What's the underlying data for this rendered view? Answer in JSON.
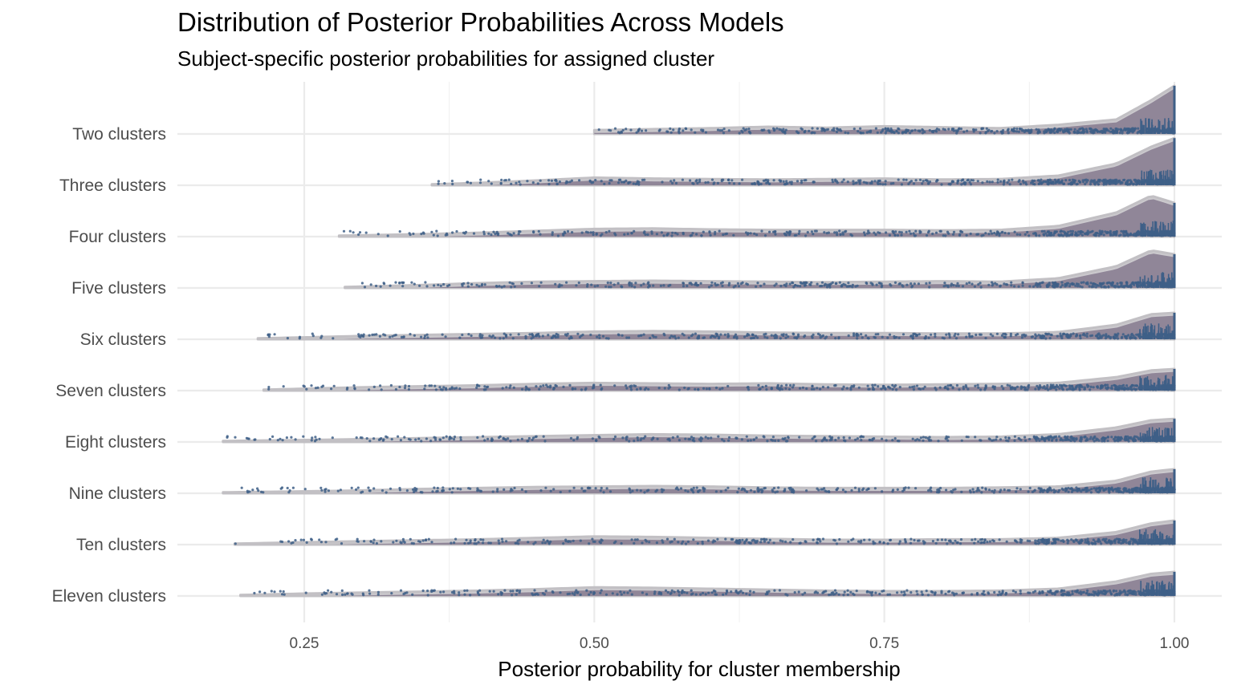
{
  "chart_data": {
    "type": "ridgeline",
    "title": "Distribution of Posterior Probabilities Across Models",
    "subtitle": "Subject-specific posterior probabilities for assigned cluster",
    "xlabel": "Posterior probability for cluster membership",
    "ylabel": "",
    "xlim": [
      0.14,
      1.04
    ],
    "x_ticks": [
      0.25,
      0.5,
      0.75,
      1.0
    ],
    "x_tick_labels": [
      "0.25",
      "0.50",
      "0.75",
      "1.00"
    ],
    "x_minor_ticks": [
      0.375,
      0.625,
      0.875
    ],
    "grid": true,
    "legend": "none",
    "colors": {
      "density_fill": "#8a7e92",
      "density_outline": "#c2c0c4",
      "points": "#3e5f87",
      "grid": "#ebebeb"
    },
    "categories": [
      "Two clusters",
      "Three clusters",
      "Four clusters",
      "Five clusters",
      "Six clusters",
      "Seven clusters",
      "Eight clusters",
      "Nine clusters",
      "Ten clusters",
      "Eleven clusters"
    ],
    "series": [
      {
        "name": "Two clusters",
        "min": 0.5,
        "max": 1.0,
        "density": [
          [
            0.5,
            0.08
          ],
          [
            0.55,
            0.1
          ],
          [
            0.6,
            0.12
          ],
          [
            0.65,
            0.15
          ],
          [
            0.7,
            0.13
          ],
          [
            0.75,
            0.16
          ],
          [
            0.8,
            0.14
          ],
          [
            0.85,
            0.12
          ],
          [
            0.9,
            0.19
          ],
          [
            0.95,
            0.3
          ],
          [
            0.98,
            0.7
          ],
          [
            1.0,
            1.0
          ]
        ]
      },
      {
        "name": "Three clusters",
        "min": 0.36,
        "max": 1.0,
        "density": [
          [
            0.36,
            0.02
          ],
          [
            0.4,
            0.05
          ],
          [
            0.45,
            0.1
          ],
          [
            0.5,
            0.16
          ],
          [
            0.55,
            0.14
          ],
          [
            0.6,
            0.13
          ],
          [
            0.65,
            0.12
          ],
          [
            0.7,
            0.13
          ],
          [
            0.75,
            0.14
          ],
          [
            0.8,
            0.12
          ],
          [
            0.85,
            0.13
          ],
          [
            0.9,
            0.2
          ],
          [
            0.95,
            0.45
          ],
          [
            0.98,
            0.8
          ],
          [
            1.0,
            0.98
          ]
        ]
      },
      {
        "name": "Four clusters",
        "min": 0.28,
        "max": 1.0,
        "density": [
          [
            0.28,
            0.02
          ],
          [
            0.35,
            0.05
          ],
          [
            0.4,
            0.08
          ],
          [
            0.45,
            0.12
          ],
          [
            0.5,
            0.16
          ],
          [
            0.55,
            0.17
          ],
          [
            0.6,
            0.15
          ],
          [
            0.65,
            0.14
          ],
          [
            0.7,
            0.14
          ],
          [
            0.75,
            0.14
          ],
          [
            0.8,
            0.13
          ],
          [
            0.85,
            0.14
          ],
          [
            0.9,
            0.22
          ],
          [
            0.95,
            0.5
          ],
          [
            0.98,
            0.85
          ],
          [
            1.0,
            0.7
          ]
        ]
      },
      {
        "name": "Five clusters",
        "min": 0.285,
        "max": 1.0,
        "density": [
          [
            0.285,
            0.02
          ],
          [
            0.35,
            0.06
          ],
          [
            0.4,
            0.1
          ],
          [
            0.45,
            0.13
          ],
          [
            0.5,
            0.14
          ],
          [
            0.55,
            0.15
          ],
          [
            0.6,
            0.14
          ],
          [
            0.65,
            0.13
          ],
          [
            0.7,
            0.12
          ],
          [
            0.75,
            0.13
          ],
          [
            0.8,
            0.14
          ],
          [
            0.85,
            0.13
          ],
          [
            0.9,
            0.2
          ],
          [
            0.95,
            0.45
          ],
          [
            0.98,
            0.78
          ],
          [
            1.0,
            0.7
          ]
        ]
      },
      {
        "name": "Six clusters",
        "min": 0.21,
        "max": 1.0,
        "density": [
          [
            0.21,
            0.02
          ],
          [
            0.25,
            0.04
          ],
          [
            0.3,
            0.07
          ],
          [
            0.35,
            0.09
          ],
          [
            0.4,
            0.11
          ],
          [
            0.45,
            0.13
          ],
          [
            0.5,
            0.16
          ],
          [
            0.55,
            0.17
          ],
          [
            0.6,
            0.16
          ],
          [
            0.65,
            0.14
          ],
          [
            0.7,
            0.13
          ],
          [
            0.75,
            0.13
          ],
          [
            0.8,
            0.12
          ],
          [
            0.85,
            0.12
          ],
          [
            0.9,
            0.15
          ],
          [
            0.95,
            0.3
          ],
          [
            0.98,
            0.52
          ],
          [
            1.0,
            0.55
          ]
        ]
      },
      {
        "name": "Seven clusters",
        "min": 0.215,
        "max": 1.0,
        "density": [
          [
            0.215,
            0.02
          ],
          [
            0.25,
            0.04
          ],
          [
            0.3,
            0.07
          ],
          [
            0.35,
            0.09
          ],
          [
            0.4,
            0.11
          ],
          [
            0.45,
            0.14
          ],
          [
            0.5,
            0.16
          ],
          [
            0.55,
            0.15
          ],
          [
            0.6,
            0.14
          ],
          [
            0.65,
            0.15
          ],
          [
            0.7,
            0.13
          ],
          [
            0.75,
            0.12
          ],
          [
            0.8,
            0.13
          ],
          [
            0.85,
            0.14
          ],
          [
            0.9,
            0.16
          ],
          [
            0.95,
            0.28
          ],
          [
            0.98,
            0.42
          ],
          [
            1.0,
            0.45
          ]
        ]
      },
      {
        "name": "Eight clusters",
        "min": 0.18,
        "max": 1.0,
        "density": [
          [
            0.18,
            0.02
          ],
          [
            0.25,
            0.04
          ],
          [
            0.3,
            0.06
          ],
          [
            0.35,
            0.08
          ],
          [
            0.4,
            0.1
          ],
          [
            0.45,
            0.12
          ],
          [
            0.5,
            0.14
          ],
          [
            0.55,
            0.16
          ],
          [
            0.6,
            0.15
          ],
          [
            0.65,
            0.13
          ],
          [
            0.7,
            0.12
          ],
          [
            0.75,
            0.11
          ],
          [
            0.8,
            0.1
          ],
          [
            0.85,
            0.11
          ],
          [
            0.9,
            0.16
          ],
          [
            0.95,
            0.3
          ],
          [
            0.98,
            0.45
          ],
          [
            1.0,
            0.48
          ]
        ]
      },
      {
        "name": "Nine clusters",
        "min": 0.18,
        "max": 1.0,
        "density": [
          [
            0.18,
            0.02
          ],
          [
            0.25,
            0.04
          ],
          [
            0.3,
            0.06
          ],
          [
            0.35,
            0.09
          ],
          [
            0.4,
            0.11
          ],
          [
            0.45,
            0.13
          ],
          [
            0.5,
            0.14
          ],
          [
            0.55,
            0.15
          ],
          [
            0.6,
            0.14
          ],
          [
            0.65,
            0.12
          ],
          [
            0.7,
            0.11
          ],
          [
            0.75,
            0.11
          ],
          [
            0.8,
            0.11
          ],
          [
            0.85,
            0.12
          ],
          [
            0.9,
            0.14
          ],
          [
            0.95,
            0.26
          ],
          [
            0.98,
            0.45
          ],
          [
            1.0,
            0.5
          ]
        ]
      },
      {
        "name": "Ten clusters",
        "min": 0.19,
        "max": 1.0,
        "density": [
          [
            0.19,
            0.02
          ],
          [
            0.25,
            0.05
          ],
          [
            0.3,
            0.07
          ],
          [
            0.35,
            0.09
          ],
          [
            0.4,
            0.11
          ],
          [
            0.45,
            0.14
          ],
          [
            0.5,
            0.17
          ],
          [
            0.55,
            0.16
          ],
          [
            0.6,
            0.14
          ],
          [
            0.65,
            0.12
          ],
          [
            0.7,
            0.1
          ],
          [
            0.75,
            0.1
          ],
          [
            0.8,
            0.11
          ],
          [
            0.85,
            0.11
          ],
          [
            0.9,
            0.14
          ],
          [
            0.95,
            0.26
          ],
          [
            0.98,
            0.44
          ],
          [
            1.0,
            0.5
          ]
        ]
      },
      {
        "name": "Eleven clusters",
        "min": 0.195,
        "max": 1.0,
        "density": [
          [
            0.195,
            0.02
          ],
          [
            0.25,
            0.05
          ],
          [
            0.3,
            0.07
          ],
          [
            0.35,
            0.09
          ],
          [
            0.4,
            0.11
          ],
          [
            0.45,
            0.14
          ],
          [
            0.5,
            0.18
          ],
          [
            0.55,
            0.17
          ],
          [
            0.6,
            0.15
          ],
          [
            0.65,
            0.13
          ],
          [
            0.7,
            0.11
          ],
          [
            0.75,
            0.1
          ],
          [
            0.8,
            0.1
          ],
          [
            0.85,
            0.11
          ],
          [
            0.9,
            0.15
          ],
          [
            0.95,
            0.3
          ],
          [
            0.98,
            0.46
          ],
          [
            1.0,
            0.5
          ]
        ]
      }
    ]
  }
}
